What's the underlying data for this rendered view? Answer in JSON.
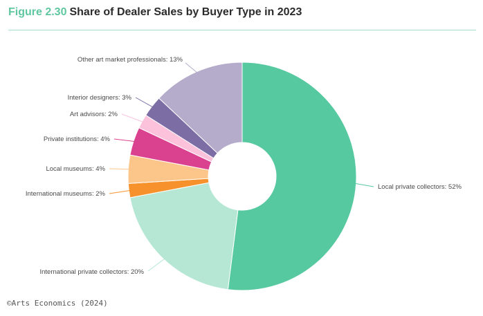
{
  "header": {
    "figure_number": "Figure 2.30",
    "title": "Share of Dealer Sales by Buyer Type in 2023"
  },
  "source": "©Arts Economics (2024)",
  "chart_data": {
    "type": "pie",
    "variant": "donut",
    "title": "Share of Dealer Sales by Buyer Type in 2023",
    "unit": "%",
    "slices": [
      {
        "label": "Local private collectors",
        "value": 52,
        "color": "#57c9a1",
        "display": "Local private collectors: 52%"
      },
      {
        "label": "International private collectors",
        "value": 20,
        "color": "#b6e7d5",
        "display": "International private collectors: 20%"
      },
      {
        "label": "International museums",
        "value": 2,
        "color": "#f7912c",
        "display": "International museums: 2%"
      },
      {
        "label": "Local museums",
        "value": 4,
        "color": "#fcc68a",
        "display": "Local museums: 4%"
      },
      {
        "label": "Private institutions",
        "value": 4,
        "color": "#da4290",
        "display": "Private institutions: 4%"
      },
      {
        "label": "Art advisors",
        "value": 2,
        "color": "#fcc1db",
        "display": "Art advisors: 2%"
      },
      {
        "label": "Interior designers",
        "value": 3,
        "color": "#7c6ea5",
        "display": "Interior designers: 3%"
      },
      {
        "label": "Other art market professionals",
        "value": 13,
        "color": "#b5abca",
        "display": "Other art market professionals: 13%"
      }
    ],
    "legend": "none"
  }
}
